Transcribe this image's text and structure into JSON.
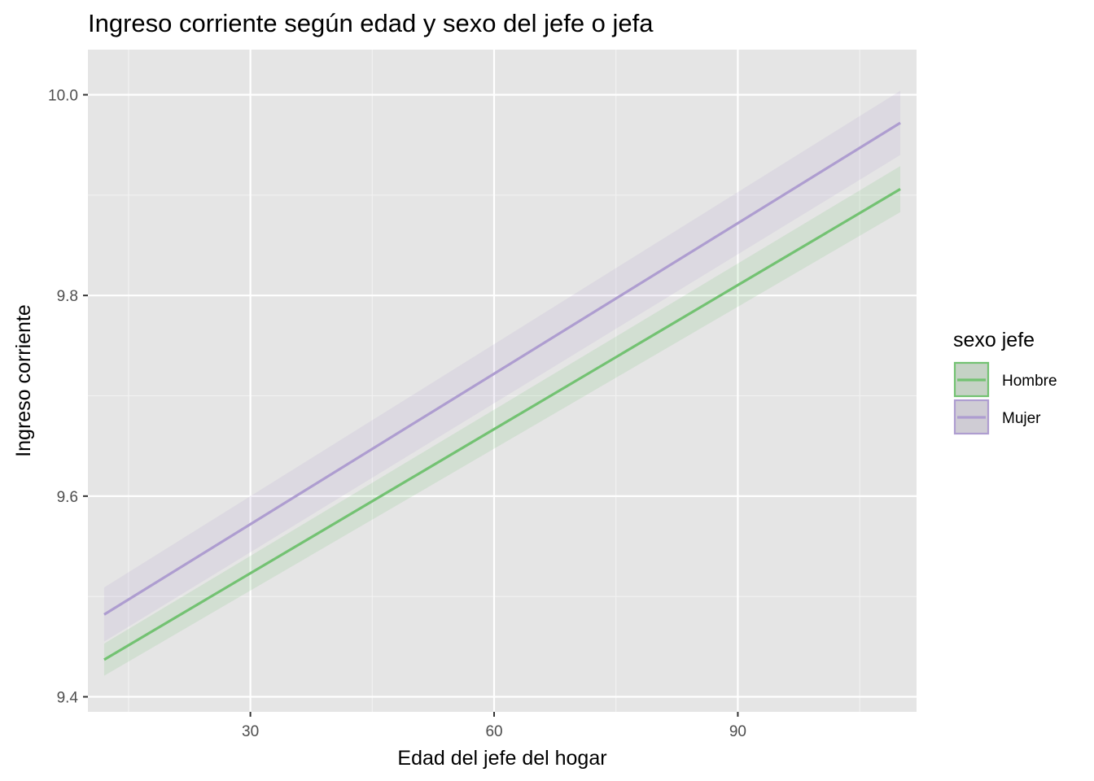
{
  "chart_data": {
    "type": "line",
    "title": "Ingreso corriente según edad  y sexo del jefe o jefa",
    "xlabel": "Edad del jefe del hogar",
    "ylabel": "Ingreso corriente",
    "xlim": [
      10,
      112
    ],
    "ylim": [
      9.385,
      10.045
    ],
    "x_ticks": [
      30,
      60,
      90
    ],
    "x_tick_labels": [
      "30",
      "60",
      "90"
    ],
    "x_minor_ticks": [
      15,
      45,
      75,
      105
    ],
    "y_ticks": [
      9.4,
      9.6,
      9.8,
      10.0
    ],
    "y_tick_labels": [
      "9.4",
      "9.6",
      "9.8",
      "10.0"
    ],
    "y_minor_ticks": [
      9.5,
      9.7,
      9.9
    ],
    "grid": true,
    "legend": {
      "title": "sexo jefe",
      "position": "right"
    },
    "series": [
      {
        "name": "Hombre",
        "color": "#73c272",
        "fill_color": "#73c272",
        "x": [
          12,
          110
        ],
        "y": [
          9.437,
          9.906
        ],
        "lower": [
          9.421,
          9.883
        ],
        "upper": [
          9.453,
          9.929
        ]
      },
      {
        "name": "Mujer",
        "color": "#ae9dd0",
        "fill_color": "#ae9dd0",
        "x": [
          12,
          110
        ],
        "y": [
          9.482,
          9.972
        ],
        "lower": [
          9.455,
          9.94
        ],
        "upper": [
          9.509,
          10.004
        ]
      }
    ]
  }
}
